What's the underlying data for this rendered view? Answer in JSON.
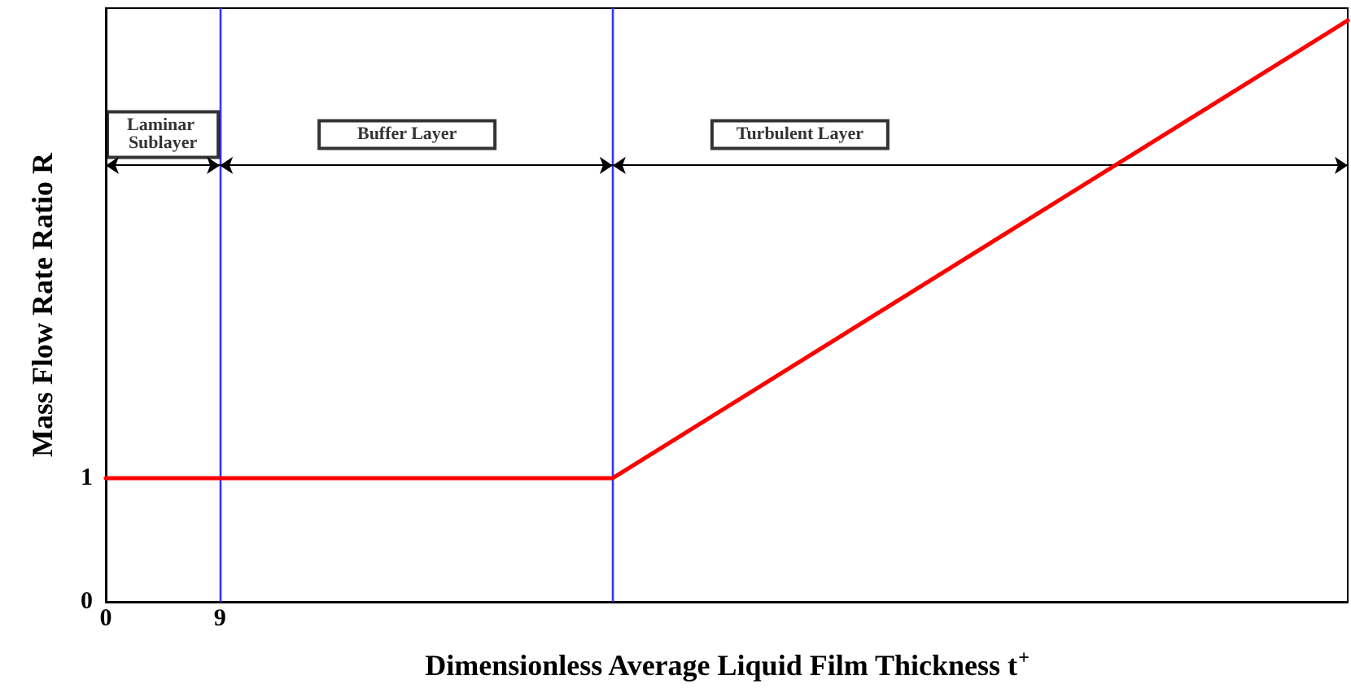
{
  "chart_data": {
    "type": "line",
    "xlabel": "Dimensionless Average Liquid Film Thickness t$^{+}$",
    "ylabel": "Mass Flow Rate Ratio R",
    "x": [
      0,
      40,
      98
    ],
    "series": [
      {
        "color": "#ff0000",
        "values": [
          1,
          1,
          4.7
        ]
      }
    ],
    "xlim": [
      0,
      98
    ],
    "ylim": [
      0,
      4.8
    ],
    "xticks": [
      0,
      9
    ],
    "yticks": [
      0,
      1
    ],
    "grid": false,
    "marker": "none",
    "line_style": "solid",
    "ref_lines": [
      {
        "axis": "x",
        "value": 9,
        "color": "#3333ff"
      },
      {
        "axis": "x",
        "value": 40,
        "color": "#3333ff"
      }
    ],
    "annotations": [
      "Laminar Sublayer",
      "Buffer Layer",
      "Turbulent Layer"
    ]
  }
}
